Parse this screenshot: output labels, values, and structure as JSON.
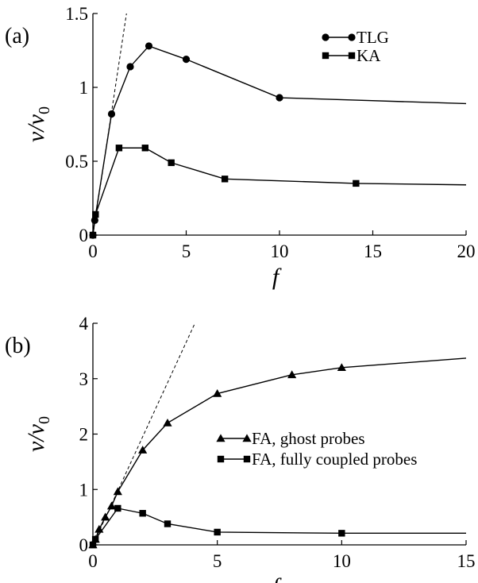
{
  "chart_data": [
    {
      "panel_label": "(a)",
      "type": "line",
      "xlabel": "f",
      "ylabel": "v/v",
      "ylabel_sub": "0",
      "xlim": [
        0,
        20
      ],
      "ylim": [
        0,
        1.5
      ],
      "xticks": [
        0,
        5,
        10,
        15,
        20
      ],
      "yticks": [
        0,
        0.5,
        1,
        1.5
      ],
      "xtick_labels": [
        "0",
        "5",
        "10",
        "15",
        "20"
      ],
      "ytick_labels": [
        "0",
        "0.5",
        "1",
        "1.5"
      ],
      "grid": false,
      "legend_position": "top-right",
      "series": [
        {
          "name": "TLG",
          "marker": "circle",
          "x": [
            0,
            0.1,
            1,
            2,
            3,
            5,
            10,
            20
          ],
          "y": [
            0,
            0.1,
            0.82,
            1.14,
            1.28,
            1.19,
            0.93,
            0.89
          ]
        },
        {
          "name": "KA",
          "marker": "square",
          "x": [
            0,
            0.14,
            1.4,
            2.8,
            4.2,
            7.07,
            14.1,
            20
          ],
          "y": [
            0,
            0.14,
            0.59,
            0.59,
            0.49,
            0.38,
            0.35,
            0.34
          ]
        }
      ],
      "reference_line": {
        "style": "dashed",
        "x": [
          0,
          1.8
        ],
        "y": [
          0,
          1.5
        ]
      }
    },
    {
      "panel_label": "(b)",
      "type": "line",
      "xlabel": "f",
      "ylabel": "v/v",
      "ylabel_sub": "0",
      "xlim": [
        0,
        15
      ],
      "ylim": [
        0,
        4
      ],
      "xticks": [
        0,
        5,
        10,
        15
      ],
      "yticks": [
        0,
        1,
        2,
        3,
        4
      ],
      "xtick_labels": [
        "0",
        "5",
        "10",
        "15"
      ],
      "ytick_labels": [
        "0",
        "1",
        "2",
        "3",
        "4"
      ],
      "grid": false,
      "legend_position": "center-right",
      "series": [
        {
          "name": "FA, ghost probes",
          "marker": "triangle",
          "x": [
            0,
            0.1,
            0.25,
            0.5,
            0.75,
            1,
            2,
            3,
            5,
            8,
            10,
            15
          ],
          "y": [
            0,
            0.1,
            0.28,
            0.5,
            0.7,
            0.96,
            1.71,
            2.2,
            2.73,
            3.07,
            3.2,
            3.37
          ]
        },
        {
          "name": "FA, fully coupled probes",
          "marker": "square",
          "x": [
            0,
            0.1,
            1,
            2,
            3,
            5,
            10,
            15
          ],
          "y": [
            0,
            0.1,
            0.66,
            0.57,
            0.38,
            0.23,
            0.21,
            0.21
          ]
        }
      ],
      "reference_line": {
        "style": "dashed",
        "x": [
          0,
          4.1
        ],
        "y": [
          0,
          4
        ]
      }
    }
  ]
}
